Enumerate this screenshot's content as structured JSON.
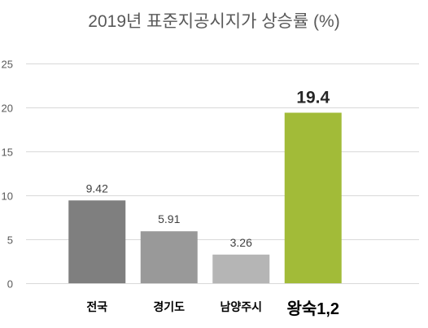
{
  "chart_data": {
    "type": "bar",
    "title": "2019년 표준지공시지가 상승률 (%)",
    "categories": [
      "전국",
      "경기도",
      "남양주시",
      "왕숙1,2"
    ],
    "values": [
      9.42,
      5.91,
      3.26,
      19.4
    ],
    "value_labels": [
      "9.42",
      "5.91",
      "3.26",
      "19.4"
    ],
    "colors": [
      "#7f7f7f",
      "#999999",
      "#b5b5b5",
      "#a2bb38"
    ],
    "highlight_index": 3,
    "ylim": [
      0,
      25
    ],
    "yticks": [
      0,
      5,
      10,
      15,
      20,
      25
    ],
    "ytick_labels": [
      "0",
      "5",
      "10",
      "15",
      "20",
      "25"
    ],
    "grid": true,
    "legend": "none"
  }
}
